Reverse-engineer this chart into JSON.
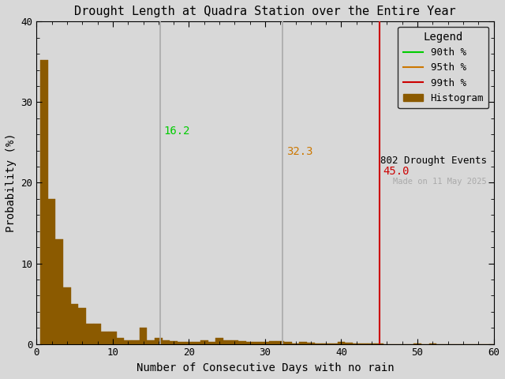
{
  "title": "Drought Length at Quadra Station over the Entire Year",
  "xlabel": "Number of Consecutive Days with no rain",
  "ylabel": "Probability (%)",
  "xlim": [
    0,
    60
  ],
  "ylim": [
    0,
    40
  ],
  "xticks": [
    0,
    10,
    20,
    30,
    40,
    50,
    60
  ],
  "yticks": [
    0,
    10,
    20,
    30,
    40
  ],
  "bar_color": "#8B5A00",
  "bar_edgecolor": "#8B5A00",
  "percentile_90": 16.2,
  "percentile_95": 32.3,
  "percentile_99": 45.0,
  "color_90": "#00CC00",
  "color_95": "#CC7700",
  "color_99": "#CC0000",
  "color_90_line": "#aaaaaa",
  "color_95_line": "#aaaaaa",
  "color_99_line": "#CC0000",
  "n_events": 802,
  "date_label": "Made on 11 May 2025",
  "background_color": "#d8d8d8",
  "bar_values": [
    35.2,
    18.0,
    13.0,
    7.0,
    5.0,
    4.5,
    2.5,
    2.5,
    1.5,
    1.5,
    0.7,
    0.5,
    0.5,
    2.0,
    0.5,
    0.7,
    0.5,
    0.4,
    0.3,
    0.3,
    0.3,
    0.5,
    0.3,
    0.7,
    0.5,
    0.5,
    0.4,
    0.3,
    0.3,
    0.3,
    0.4,
    0.4,
    0.3,
    0.1,
    0.3,
    0.2,
    0.1,
    0.1,
    0.1,
    0.3,
    0.2,
    0.1,
    0.1,
    0.1,
    0.1,
    0.0,
    0.0,
    0.0,
    0.0,
    0.1,
    0.0,
    0.1,
    0.0,
    0.0,
    0.0,
    0.0,
    0.0,
    0.0,
    0.0,
    0.0
  ]
}
